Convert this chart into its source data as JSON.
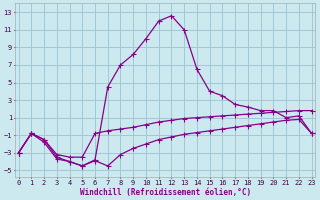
{
  "xlabel": "Windchill (Refroidissement éolien,°C)",
  "bg_color": "#cce9f0",
  "grid_color": "#a0c8d8",
  "line_color": "#880088",
  "x_ticks": [
    0,
    1,
    2,
    3,
    4,
    5,
    6,
    7,
    8,
    9,
    10,
    11,
    12,
    13,
    14,
    15,
    16,
    17,
    18,
    19,
    20,
    21,
    22,
    23
  ],
  "y_ticks": [
    -5,
    -3,
    -1,
    1,
    3,
    5,
    7,
    9,
    11,
    13
  ],
  "ylim": [
    -5.8,
    14.0
  ],
  "xlim": [
    -0.3,
    23.3
  ],
  "line1_x": [
    0,
    1,
    2,
    3,
    4,
    5,
    6,
    7,
    8,
    9,
    10,
    11,
    12,
    13,
    14,
    15,
    16,
    17,
    18,
    19,
    20,
    21,
    22,
    23
  ],
  "line1_y": [
    -3,
    -0.8,
    -1.5,
    -3.5,
    -4.0,
    -4.5,
    -3.8,
    4.5,
    7.0,
    8.2,
    10.0,
    12.0,
    12.6,
    11.0,
    6.5,
    4.0,
    3.5,
    2.5,
    2.2,
    1.8,
    1.8,
    1.0,
    1.2,
    -0.8
  ],
  "line2_x": [
    0,
    1,
    2,
    3,
    4,
    5,
    6,
    7,
    8,
    9,
    10,
    11,
    12,
    13,
    14,
    15,
    16,
    17,
    18,
    19,
    20,
    21,
    22,
    23
  ],
  "line2_y": [
    -3,
    -0.8,
    -1.5,
    -3.2,
    -3.5,
    -3.5,
    -0.8,
    -0.5,
    -0.3,
    -0.1,
    0.2,
    0.5,
    0.7,
    0.9,
    1.0,
    1.1,
    1.2,
    1.3,
    1.4,
    1.5,
    1.6,
    1.7,
    1.8,
    1.8
  ],
  "line3_x": [
    0,
    1,
    2,
    3,
    4,
    5,
    6,
    7,
    8,
    9,
    10,
    11,
    12,
    13,
    14,
    15,
    16,
    17,
    18,
    19,
    20,
    21,
    22,
    23
  ],
  "line3_y": [
    -3,
    -0.8,
    -1.8,
    -3.7,
    -4.0,
    -4.5,
    -3.9,
    -4.5,
    -3.2,
    -2.5,
    -2.0,
    -1.5,
    -1.2,
    -0.9,
    -0.7,
    -0.5,
    -0.3,
    -0.1,
    0.1,
    0.3,
    0.5,
    0.7,
    0.8,
    -0.8
  ]
}
